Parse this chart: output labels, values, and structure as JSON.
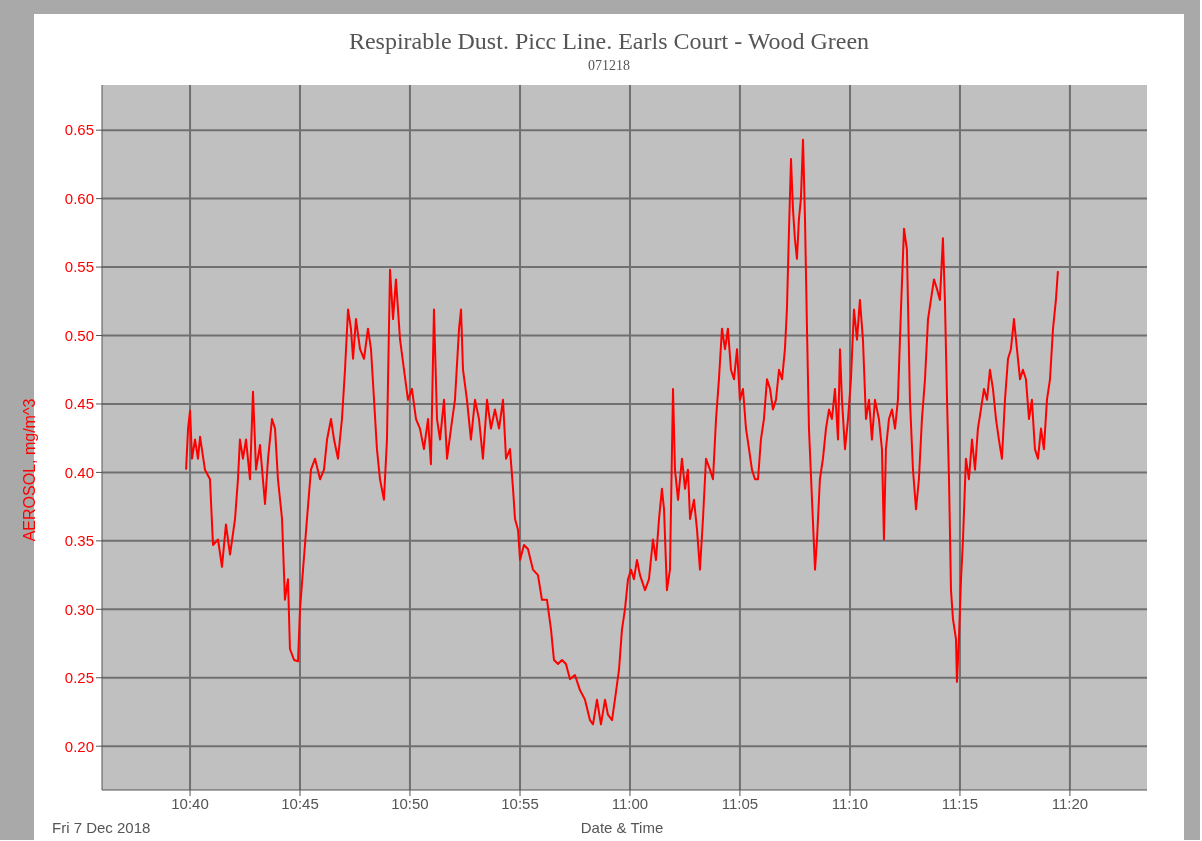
{
  "chart_data": {
    "type": "line",
    "title": "Respirable Dust. Picc Line. Earls Court - Wood Green",
    "subtitle": "071218",
    "xlabel": "Date & Time",
    "ylabel": "AEROSOL, mg/m^3",
    "annotations": [
      "Fri 7 Dec 2018"
    ],
    "x": [
      10.6637,
      10.6652,
      10.6667,
      10.6682,
      10.6705,
      10.6727,
      10.6743,
      10.678,
      10.6818,
      10.6841,
      10.6879,
      10.6909,
      10.6939,
      10.697,
      10.7008,
      10.703,
      10.7045,
      10.7068,
      10.7091,
      10.7121,
      10.7144,
      10.7167,
      10.7197,
      10.7235,
      10.7258,
      10.7288,
      10.7311,
      10.7333,
      10.7364,
      10.7386,
      10.7409,
      10.7424,
      10.7455,
      10.7485,
      10.75,
      10.7523,
      10.7553,
      10.7583,
      10.7614,
      10.7652,
      10.7682,
      10.7705,
      10.7735,
      10.7758,
      10.7788,
      10.7818,
      10.7841,
      10.7864,
      10.7886,
      10.7902,
      10.7924,
      10.7955,
      10.7985,
      10.8015,
      10.8038,
      10.8061,
      10.8083,
      10.8106,
      10.8136,
      10.8159,
      10.8182,
      10.8205,
      10.8227,
      10.8258,
      10.8288,
      10.8318,
      10.8348,
      10.8379,
      10.8409,
      10.8439,
      10.847,
      10.8492,
      10.8515,
      10.8538,
      10.8561,
      10.8591,
      10.8614,
      10.8644,
      10.8674,
      10.8705,
      10.872,
      10.8735,
      10.8765,
      10.8795,
      10.8826,
      10.8856,
      10.8886,
      10.8917,
      10.8947,
      10.8977,
      10.9008,
      10.9038,
      10.9061,
      10.9091,
      10.9114,
      10.9129,
      10.9152,
      10.9167,
      10.9197,
      10.9227,
      10.9265,
      10.9303,
      10.9333,
      10.9371,
      10.9402,
      10.9424,
      10.9455,
      10.9485,
      10.9515,
      10.9545,
      10.9583,
      10.9621,
      10.9659,
      10.9697,
      10.972,
      10.975,
      10.978,
      10.9811,
      10.9833,
      10.9864,
      10.9886,
      10.9917,
      10.9939,
      10.9962,
      10.9985,
      11.0008,
      11.003,
      11.0053,
      11.0076,
      11.0114,
      11.0144,
      11.0174,
      11.0197,
      11.022,
      11.0242,
      11.0258,
      11.028,
      11.0303,
      11.0326,
      11.0341,
      11.0364,
      11.0394,
      11.0417,
      11.0439,
      11.0455,
      11.0485,
      11.0508,
      11.053,
      11.0553,
      11.0576,
      11.0606,
      11.0629,
      11.0652,
      11.0674,
      11.0697,
      11.072,
      11.0742,
      11.0765,
      11.0788,
      11.0811,
      11.0833,
      11.0856,
      11.0879,
      11.0902,
      11.0924,
      11.0947,
      11.097,
      11.0992,
      11.1015,
      11.1038,
      11.1061,
      11.1083,
      11.1106,
      11.1129,
      11.1152,
      11.1174,
      11.1189,
      11.1205,
      11.122,
      11.1235,
      11.125,
      11.1265,
      11.128,
      11.1295,
      11.1311,
      11.1326,
      11.1341,
      11.1356,
      11.1379,
      11.1402,
      11.1417,
      11.1439,
      11.1462,
      11.1485,
      11.1508,
      11.153,
      11.1553,
      11.1576,
      11.1591,
      11.1606,
      11.1629,
      11.1652,
      11.1674,
      11.1697,
      11.172,
      11.1742,
      11.1765,
      11.1788,
      11.1811,
      11.1833,
      11.1856,
      11.1886,
      11.1909,
      11.1924,
      11.1939,
      11.1962,
      11.1985,
      11.2008,
      11.203,
      11.2053,
      11.2076,
      11.2098,
      11.2121,
      11.2144,
      11.2167,
      11.2189,
      11.2212,
      11.2235,
      11.2258,
      11.228,
      11.2303,
      11.2326,
      11.2348,
      11.2371,
      11.2386,
      11.2402,
      11.2417,
      11.2432,
      11.2447,
      11.247,
      11.2477,
      11.2492,
      11.2508,
      11.2523,
      11.2545,
      11.2568,
      11.2591,
      11.2614,
      11.2636,
      11.2659,
      11.2682,
      11.2705,
      11.2727,
      11.275,
      11.2773,
      11.2795,
      11.2818,
      11.2841,
      11.2864,
      11.2886,
      11.2909,
      11.2932,
      11.2955,
      11.2977,
      11.3,
      11.3023,
      11.3045,
      11.3068,
      11.3091,
      11.3114,
      11.3136,
      11.3159,
      11.3182,
      11.3205,
      11.3227,
      11.3242
    ],
    "series": [
      {
        "color": "#ff0000",
        "values": [
          0.402,
          0.432,
          0.445,
          0.41,
          0.424,
          0.41,
          0.426,
          0.402,
          0.395,
          0.347,
          0.351,
          0.331,
          0.362,
          0.34,
          0.366,
          0.395,
          0.424,
          0.41,
          0.424,
          0.395,
          0.459,
          0.402,
          0.42,
          0.377,
          0.41,
          0.439,
          0.432,
          0.395,
          0.366,
          0.307,
          0.322,
          0.271,
          0.263,
          0.262,
          0.3,
          0.329,
          0.366,
          0.402,
          0.41,
          0.395,
          0.402,
          0.424,
          0.439,
          0.424,
          0.41,
          0.439,
          0.475,
          0.519,
          0.505,
          0.483,
          0.512,
          0.49,
          0.483,
          0.505,
          0.49,
          0.453,
          0.417,
          0.395,
          0.38,
          0.424,
          0.548,
          0.512,
          0.541,
          0.497,
          0.475,
          0.453,
          0.461,
          0.439,
          0.432,
          0.417,
          0.439,
          0.406,
          0.519,
          0.439,
          0.424,
          0.453,
          0.41,
          0.432,
          0.453,
          0.505,
          0.519,
          0.475,
          0.453,
          0.424,
          0.453,
          0.439,
          0.41,
          0.453,
          0.432,
          0.446,
          0.432,
          0.453,
          0.41,
          0.417,
          0.388,
          0.366,
          0.358,
          0.336,
          0.347,
          0.344,
          0.329,
          0.325,
          0.307,
          0.307,
          0.285,
          0.263,
          0.26,
          0.263,
          0.26,
          0.249,
          0.252,
          0.241,
          0.234,
          0.219,
          0.216,
          0.234,
          0.216,
          0.234,
          0.223,
          0.219,
          0.234,
          0.256,
          0.285,
          0.3,
          0.322,
          0.329,
          0.322,
          0.336,
          0.325,
          0.314,
          0.322,
          0.351,
          0.336,
          0.366,
          0.388,
          0.373,
          0.314,
          0.329,
          0.461,
          0.402,
          0.38,
          0.41,
          0.388,
          0.402,
          0.366,
          0.38,
          0.358,
          0.329,
          0.366,
          0.41,
          0.402,
          0.395,
          0.439,
          0.468,
          0.505,
          0.49,
          0.505,
          0.475,
          0.468,
          0.49,
          0.453,
          0.461,
          0.432,
          0.417,
          0.402,
          0.395,
          0.395,
          0.424,
          0.439,
          0.468,
          0.461,
          0.446,
          0.453,
          0.475,
          0.468,
          0.49,
          0.519,
          0.578,
          0.629,
          0.592,
          0.57,
          0.556,
          0.585,
          0.6,
          0.643,
          0.585,
          0.505,
          0.432,
          0.38,
          0.329,
          0.351,
          0.395,
          0.41,
          0.432,
          0.446,
          0.439,
          0.461,
          0.424,
          0.49,
          0.453,
          0.417,
          0.439,
          0.468,
          0.519,
          0.497,
          0.526,
          0.497,
          0.439,
          0.453,
          0.424,
          0.453,
          0.439,
          0.417,
          0.351,
          0.417,
          0.439,
          0.446,
          0.432,
          0.453,
          0.519,
          0.578,
          0.563,
          0.453,
          0.402,
          0.373,
          0.395,
          0.439,
          0.468,
          0.512,
          0.526,
          0.541,
          0.534,
          0.526,
          0.571,
          0.526,
          0.453,
          0.395,
          0.314,
          0.293,
          0.278,
          0.247,
          0.278,
          0.322,
          0.351,
          0.41,
          0.395,
          0.424,
          0.402,
          0.432,
          0.446,
          0.461,
          0.453,
          0.475,
          0.461,
          0.439,
          0.424,
          0.41,
          0.453,
          0.483,
          0.49,
          0.512,
          0.49,
          0.468,
          0.475,
          0.468,
          0.439,
          0.453,
          0.417,
          0.41,
          0.432,
          0.417,
          0.453,
          0.468,
          0.505,
          0.526,
          0.547
        ]
      }
    ],
    "xlim": [
      10.6,
      11.3917
    ],
    "xticks": [
      {
        "value": 10.6667,
        "label": "10:40"
      },
      {
        "value": 10.75,
        "label": "10:45"
      },
      {
        "value": 10.8333,
        "label": "10:50"
      },
      {
        "value": 10.9167,
        "label": "10:55"
      },
      {
        "value": 11,
        "label": "11:00"
      },
      {
        "value": 11.0833,
        "label": "11:05"
      },
      {
        "value": 11.1667,
        "label": "11:10"
      },
      {
        "value": 11.25,
        "label": "11:15"
      },
      {
        "value": 11.3333,
        "label": "11:20"
      }
    ],
    "ylim": [
      0.168,
      0.683
    ],
    "yticks": [
      {
        "value": 0.2,
        "label": "0.20"
      },
      {
        "value": 0.25,
        "label": "0.25"
      },
      {
        "value": 0.3,
        "label": "0.30"
      },
      {
        "value": 0.35,
        "label": "0.35"
      },
      {
        "value": 0.4,
        "label": "0.40"
      },
      {
        "value": 0.45,
        "label": "0.45"
      },
      {
        "value": 0.5,
        "label": "0.50"
      },
      {
        "value": 0.55,
        "label": "0.55"
      },
      {
        "value": 0.6,
        "label": "0.60"
      },
      {
        "value": 0.65,
        "label": "0.65"
      }
    ],
    "grid": true
  }
}
